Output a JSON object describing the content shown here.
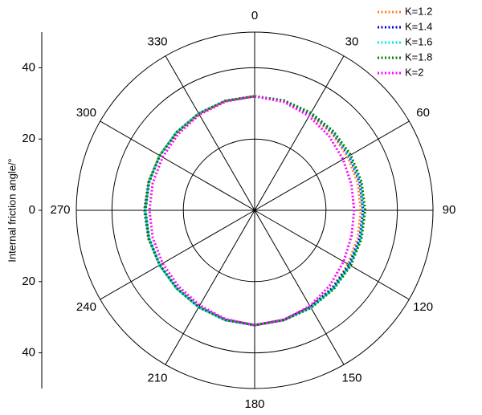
{
  "chart_data": {
    "type": "polar",
    "ylabel": "Internal friction angle/°",
    "ylim": [
      -50,
      50
    ],
    "yticks": [
      {
        "value": -40,
        "label": "40"
      },
      {
        "value": -20,
        "label": "20"
      },
      0,
      20,
      40
    ],
    "rlim": [
      0,
      50
    ],
    "rticks": [
      20,
      40
    ],
    "thetaticks": [
      0,
      30,
      60,
      90,
      120,
      150,
      180,
      210,
      240,
      270,
      300,
      330
    ],
    "theta": [
      0,
      15,
      30,
      45,
      60,
      75,
      90,
      105,
      120,
      135,
      150,
      165,
      180,
      195,
      210,
      225,
      240,
      255,
      270,
      285,
      300,
      315,
      330,
      345
    ],
    "series": [
      {
        "name": "K=1.2",
        "color": "#ff7f27",
        "values": [
          32,
          31.6,
          31,
          30.5,
          30.1,
          29.9,
          29.8,
          29.9,
          30.2,
          30.7,
          31.2,
          31.8,
          32.2,
          31.8,
          31.3,
          30.9,
          30.8,
          30.9,
          31,
          30.9,
          30.8,
          30.9,
          31.3,
          31.8
        ]
      },
      {
        "name": "K=1.4",
        "color": "#0000cc",
        "values": [
          32,
          31.8,
          31.3,
          30.9,
          30.6,
          30.5,
          30.4,
          30.5,
          30.6,
          30.9,
          31.3,
          31.8,
          32.2,
          31.8,
          31.3,
          30.9,
          30.7,
          30.7,
          30.8,
          30.7,
          30.7,
          30.9,
          31.3,
          31.8
        ]
      },
      {
        "name": "K=1.6",
        "color": "#00e5ee",
        "values": [
          32,
          31.9,
          31.5,
          31.1,
          30.8,
          30.7,
          30.6,
          30.7,
          30.8,
          31.1,
          31.5,
          31.9,
          32.3,
          31.9,
          31.4,
          31,
          30.8,
          30.7,
          30.7,
          30.7,
          30.8,
          31,
          31.4,
          31.8
        ]
      },
      {
        "name": "K=1.8",
        "color": "#008000",
        "values": [
          32,
          31.9,
          31.6,
          31.3,
          31.1,
          31,
          31,
          31,
          31.1,
          31.3,
          31.6,
          31.9,
          32.2,
          31.9,
          31.4,
          31,
          30.7,
          30.6,
          30.6,
          30.6,
          30.7,
          31,
          31.4,
          31.8
        ]
      },
      {
        "name": "K=2",
        "color": "#ff00ff",
        "values": [
          32,
          31.5,
          30.5,
          29.5,
          28.6,
          28.1,
          27.9,
          28.1,
          28.8,
          29.8,
          31,
          31.8,
          32.2,
          31.6,
          30.8,
          30.2,
          29.8,
          29.6,
          29.5,
          29.6,
          29.8,
          30.3,
          31,
          31.6
        ]
      }
    ]
  }
}
